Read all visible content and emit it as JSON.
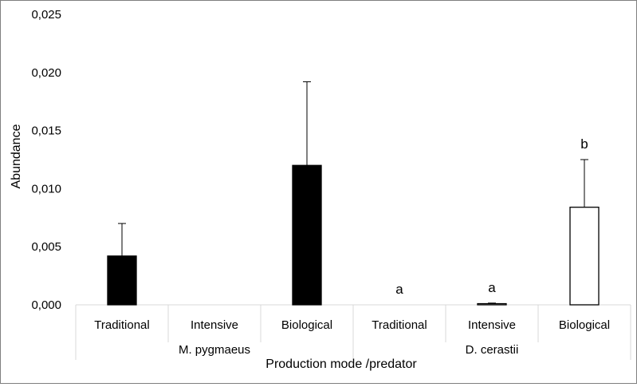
{
  "chart_data": {
    "type": "bar",
    "ylabel": "Abundance",
    "xlabel": "Production mode /predator",
    "ylim": [
      0,
      0.025
    ],
    "ytick_values": [
      0,
      0.005,
      0.01,
      0.015,
      0.02,
      0.025
    ],
    "ytick_labels": [
      "0,000",
      "0,005",
      "0,010",
      "0,015",
      "0,020",
      "0,025"
    ],
    "groups": [
      {
        "name": "M. pygmaeus",
        "fill": "#000000",
        "bars": [
          {
            "category": "Traditional",
            "value": 0.0042,
            "error": 0.0028,
            "label": ""
          },
          {
            "category": "Intensive",
            "value": 0.0,
            "error": 0.0,
            "label": ""
          },
          {
            "category": "Biological",
            "value": 0.012,
            "error": 0.0072,
            "label": ""
          }
        ]
      },
      {
        "name": "D. cerastii",
        "fill": "#ffffff",
        "bars": [
          {
            "category": "Traditional",
            "value": 0.0,
            "error": 0.0,
            "label": "a"
          },
          {
            "category": "Intensive",
            "value": 0.0001,
            "error": 5e-05,
            "label": "a"
          },
          {
            "category": "Biological",
            "value": 0.0084,
            "error": 0.0041,
            "label": "b"
          }
        ]
      }
    ]
  }
}
